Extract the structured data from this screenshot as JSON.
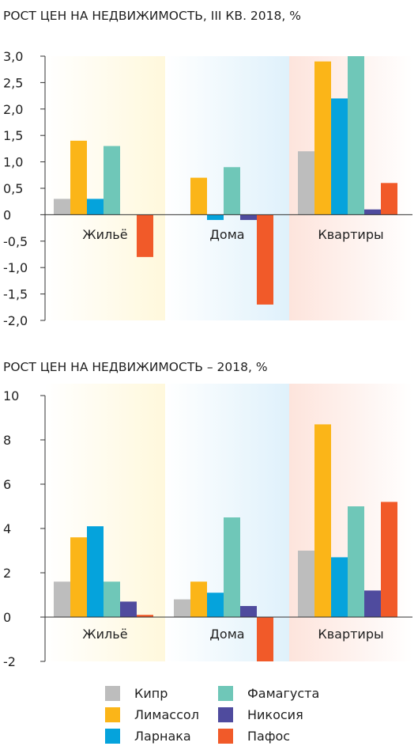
{
  "chart_data": [
    {
      "type": "bar",
      "title": "РОСТ ЦЕН НА НЕДВИЖИМОСТЬ, III КВ. 2018, %",
      "categories": [
        "Жильё",
        "Дома",
        "Квартиры"
      ],
      "ylim": [
        -2.0,
        3.0
      ],
      "yticks": [
        "3,0",
        "2,5",
        "2,0",
        "1,5",
        "1,0",
        "0,5",
        "0",
        "-0,5",
        "-1,0",
        "-1,5",
        "-2,0"
      ],
      "series": [
        {
          "name": "Кипр",
          "values": [
            0.3,
            0.0,
            1.2
          ]
        },
        {
          "name": "Лимассол",
          "values": [
            1.4,
            0.7,
            2.9
          ]
        },
        {
          "name": "Ларнака",
          "values": [
            0.3,
            -0.1,
            2.2
          ]
        },
        {
          "name": "Фамагуста",
          "values": [
            1.3,
            0.9,
            3.0
          ]
        },
        {
          "name": "Никосия",
          "values": [
            0.0,
            -0.1,
            0.1
          ]
        },
        {
          "name": "Пафос",
          "values": [
            -0.8,
            -1.7,
            0.6
          ]
        }
      ]
    },
    {
      "type": "bar",
      "title": "РОСТ ЦЕН НА НЕДВИЖИМОСТЬ – 2018, %",
      "categories": [
        "Жильё",
        "Дома",
        "Квартиры"
      ],
      "ylim": [
        -2,
        10
      ],
      "yticks": [
        "10",
        "8",
        "6",
        "4",
        "2",
        "0",
        "-2"
      ],
      "series": [
        {
          "name": "Кипр",
          "values": [
            1.6,
            0.8,
            3.0
          ]
        },
        {
          "name": "Лимассол",
          "values": [
            3.6,
            1.6,
            8.7
          ]
        },
        {
          "name": "Ларнака",
          "values": [
            4.1,
            1.1,
            2.7
          ]
        },
        {
          "name": "Фамагуста",
          "values": [
            1.6,
            4.5,
            5.0
          ]
        },
        {
          "name": "Никосия",
          "values": [
            0.7,
            0.5,
            1.2
          ]
        },
        {
          "name": "Пафос",
          "values": [
            0.1,
            -2.0,
            5.2
          ]
        }
      ]
    }
  ],
  "colors": {
    "Кипр": "#bdbdbd",
    "Лимассол": "#fbb518",
    "Ларнака": "#05a3dc",
    "Фамагуста": "#6fc7b8",
    "Никосия": "#4f4b9e",
    "Пафос": "#f15a29"
  },
  "legend": {
    "items": [
      "Кипр",
      "Лимассол",
      "Ларнака",
      "Фамагуста",
      "Никосия",
      "Пафос"
    ]
  }
}
